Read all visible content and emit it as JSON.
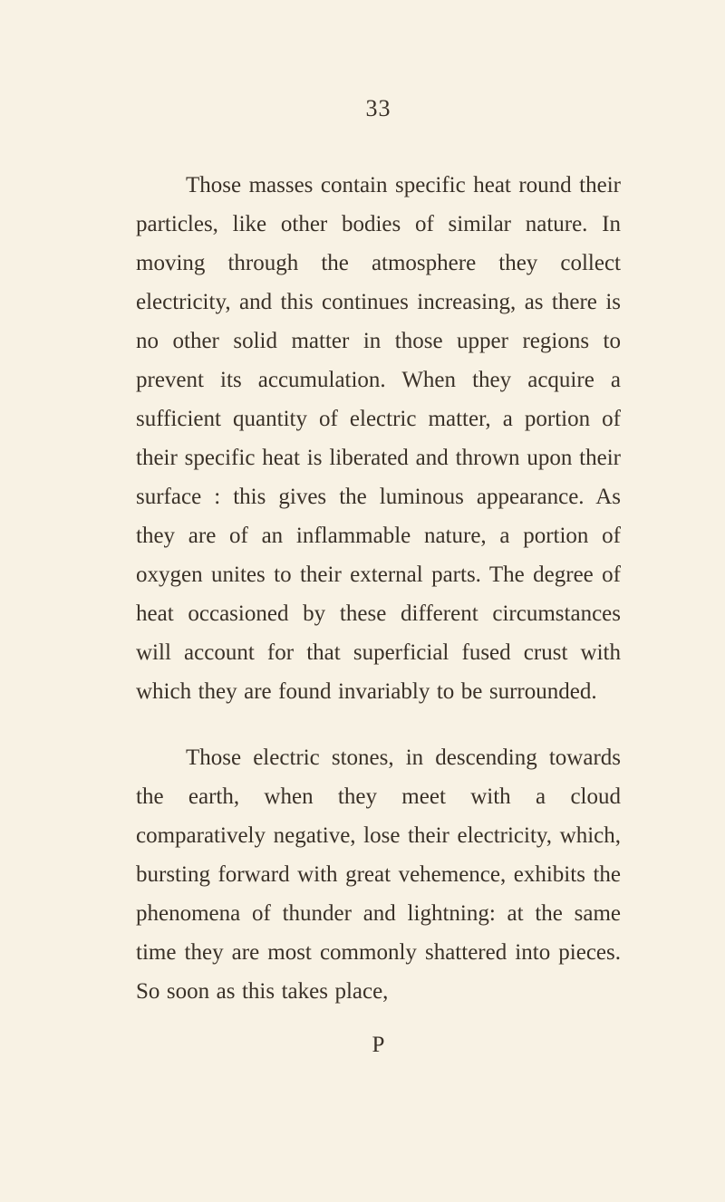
{
  "page_number": "33",
  "paragraphs": [
    "Those masses contain specific heat round their particles, like other bodies of similar nature. In moving through the atmosphere they collect electricity, and this continues increasing, as there is no other solid matter in those upper regions to prevent its accumulation. When they acquire a sufficient quantity of electric matter, a portion of their specific heat is liberated and thrown upon their surface : this gives the luminous appearance. As they are of an inflammable nature, a por­tion of oxygen unites to their external parts. The degree of heat occasioned by these different circumstances will account for that superficial fused crust with which they are found invariably to be sur­rounded.",
    "Those electric stones, in descending towards the earth, when they meet with a cloud comparatively negative, lose their electricity, which, bursting forward with great vehemence, exhibits the phenomena of thunder and lightning: at the same time they are most commonly shattered into pieces. So soon as this takes place,"
  ],
  "signature_mark": "P"
}
